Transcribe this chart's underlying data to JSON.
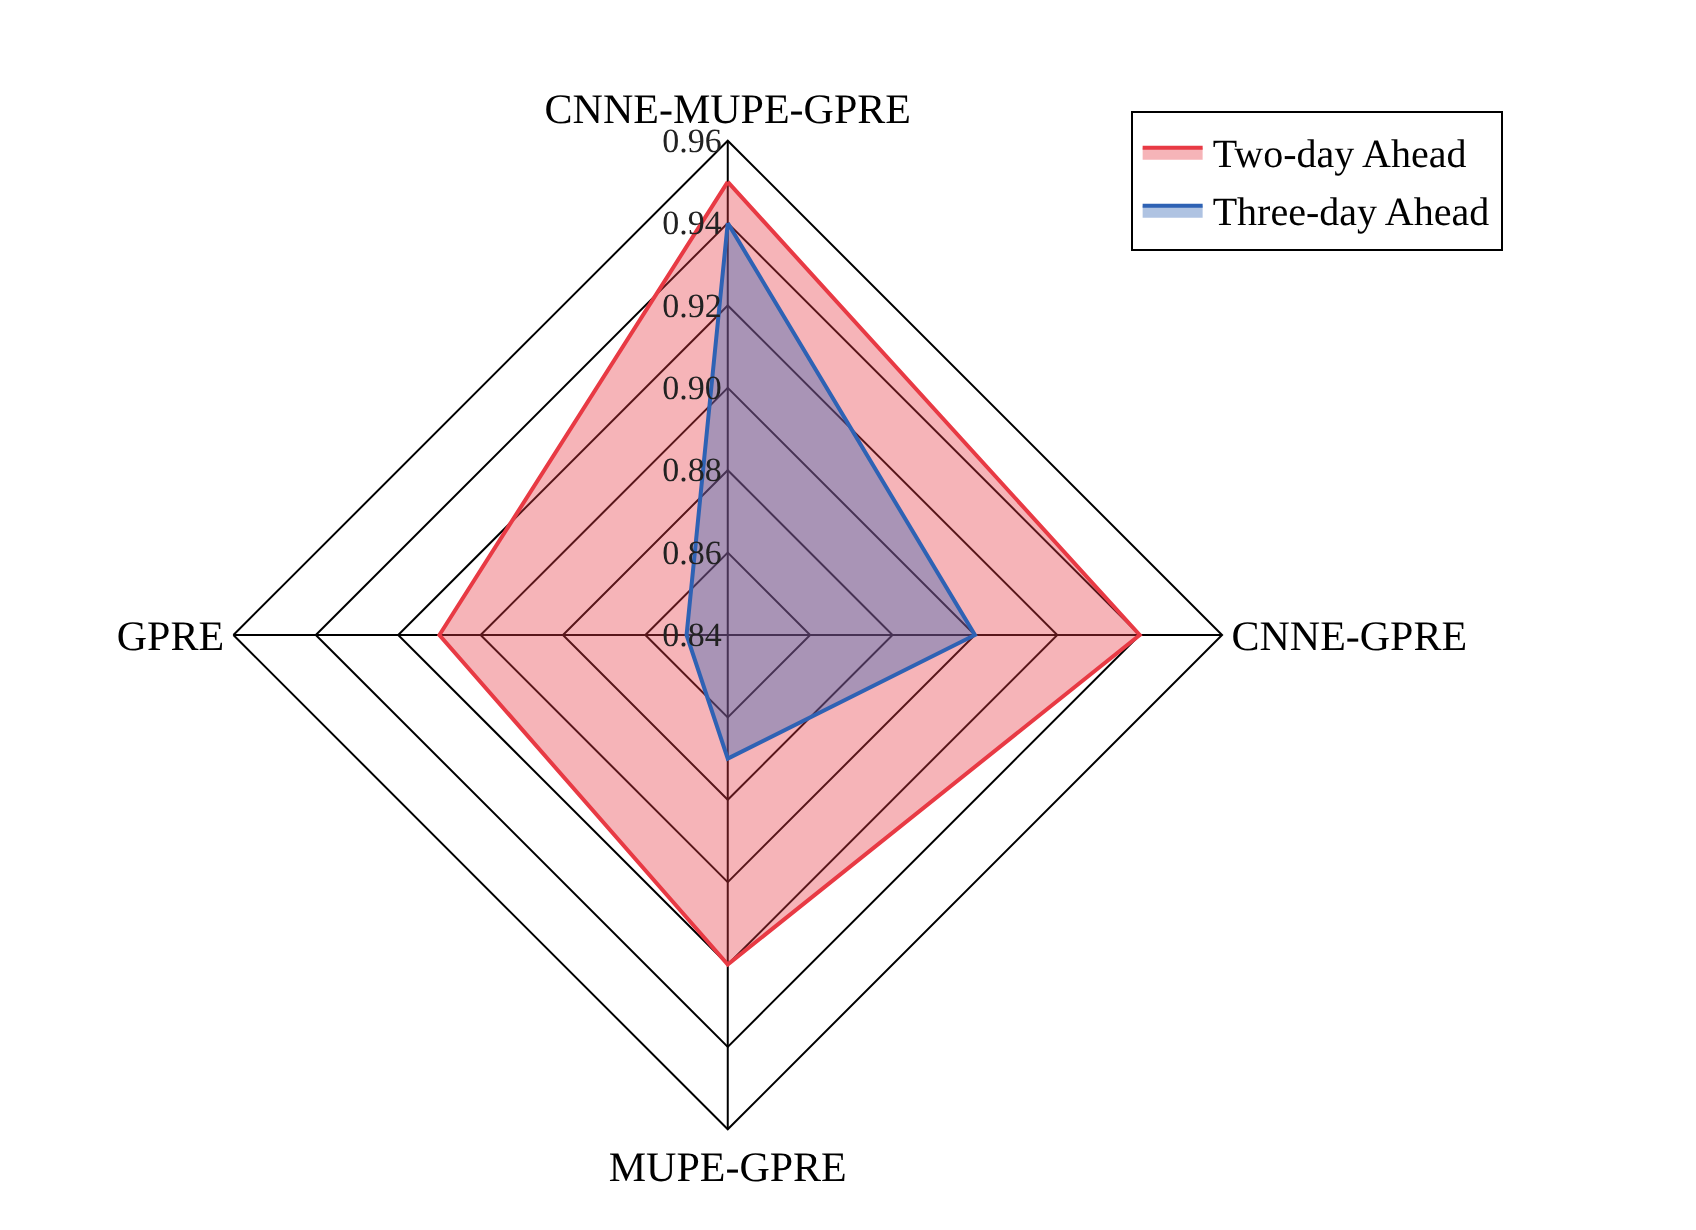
{
  "chart_data": {
    "type": "radar",
    "categories": [
      "CNNE-MUPE-GPRE",
      "CNNE-GPRE",
      "MUPE-GPRE",
      "GPRE"
    ],
    "series": [
      {
        "name": "Two-day Ahead",
        "color": "#e83a44",
        "values": [
          0.95,
          0.94,
          0.92,
          0.91
        ]
      },
      {
        "name": "Three-day Ahead",
        "color": "#2e62b4",
        "values": [
          0.94,
          0.9,
          0.87,
          0.85
        ]
      }
    ],
    "ylim": [
      0.84,
      0.96
    ],
    "yticks": [
      0.84,
      0.86,
      0.88,
      {
        "value": 0.9,
        "label": "0.90"
      },
      0.92,
      0.94,
      0.96
    ],
    "legend": "top right",
    "grid": true
  }
}
